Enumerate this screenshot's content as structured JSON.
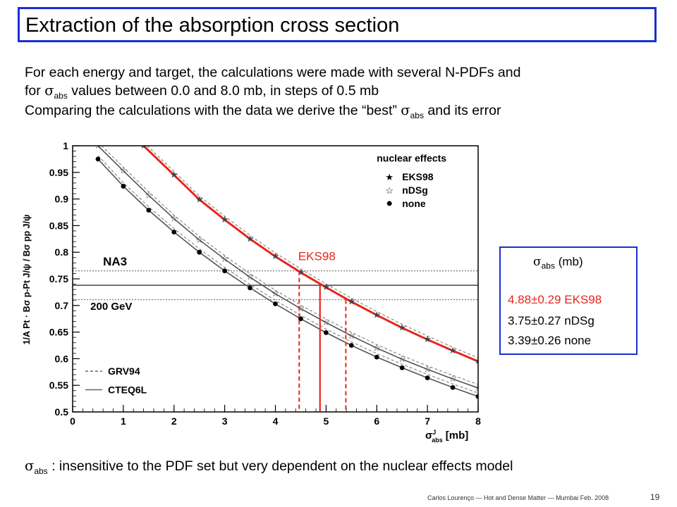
{
  "slide": {
    "title": "Extraction of the absorption cross section",
    "p1_line1": "For each energy and target, the calculations were made with several N-PDFs and",
    "p1_line2_pre": "for",
    "p1_line2_post": "values between 0.0 and 8.0 mb, in steps of 0.5 mb",
    "p2_pre": "Comparing the calculations with the data we derive the “best”",
    "p2_post": "and its error",
    "sigma_symbol": "σ",
    "abs_sub": "abs",
    "bottom_text": ": insensitive to the PDF set but very dependent on the nuclear effects model",
    "footer": "Carlos Lourenço — Hot and Dense Matter — Mumbai Feb. 2008",
    "page_number": "19"
  },
  "results_box": {
    "header_unit": "(mb)",
    "rows": [
      {
        "value": "4.88±0.29",
        "label": "EKS98",
        "color": "#e8251c"
      },
      {
        "value": "3.75±0.27",
        "label": "nDSg",
        "color": "#000000"
      },
      {
        "value": "3.39±0.26",
        "label": "none",
        "color": "#000000"
      }
    ]
  },
  "chart_data": {
    "type": "line",
    "xlabel": "σ abs J [mb]",
    "xlabel_main": "σ",
    "xlabel_sup": "J",
    "xlabel_sub": "abs",
    "xlabel_unit": "[mb]",
    "ylabel": "1/A Pt · Bσ p-Pt J/ψ / Bσ pp J/ψ",
    "xlim": [
      0,
      8
    ],
    "ylim": [
      0.5,
      1.0
    ],
    "x_ticks": [
      "0",
      "1",
      "2",
      "3",
      "4",
      "5",
      "6",
      "7",
      "8"
    ],
    "y_ticks": [
      "0.5",
      "0.55",
      "0.6",
      "0.65",
      "0.7",
      "0.75",
      "0.8",
      "0.85",
      "0.9",
      "0.95",
      "1"
    ],
    "experiment_label": "NA3",
    "energy_label": "200 GeV",
    "curve_label": "EKS98",
    "legend_title": "nuclear effects",
    "legend_items": [
      "EKS98",
      "nDSg",
      "none"
    ],
    "pdf_legend": [
      "GRV94",
      "CTEQ6L"
    ],
    "data_band": {
      "central": 0.738,
      "low": 0.711,
      "high": 0.765
    },
    "sigma_lines": {
      "central": 4.88,
      "low": 4.47,
      "high": 5.39
    },
    "series": [
      {
        "name": "EKS98",
        "color": "#e8251c",
        "x": [
          1.4,
          2.0,
          2.5,
          3.0,
          3.5,
          4.0,
          4.5,
          5.0,
          5.5,
          6.0,
          6.5,
          7.0,
          7.5,
          8.0
        ],
        "y": [
          1.0,
          0.945,
          0.899,
          0.861,
          0.825,
          0.792,
          0.762,
          0.734,
          0.707,
          0.682,
          0.658,
          0.636,
          0.615,
          0.595
        ]
      },
      {
        "name": "nDSg",
        "x": [
          0.5,
          1.0,
          1.5,
          2.0,
          2.5,
          3.0,
          3.5,
          4.0,
          4.5,
          5.0,
          5.5,
          6.0,
          6.5,
          7.0,
          7.5,
          8.0
        ],
        "y": [
          1.0,
          0.953,
          0.907,
          0.863,
          0.823,
          0.787,
          0.753,
          0.722,
          0.694,
          0.668,
          0.643,
          0.62,
          0.599,
          0.58,
          0.562,
          0.545
        ]
      },
      {
        "name": "none",
        "x": [
          0.5,
          1.0,
          1.5,
          2.0,
          2.5,
          3.0,
          3.5,
          4.0,
          4.5,
          5.0,
          5.5,
          6.0,
          6.5,
          7.0,
          7.5,
          8.0
        ],
        "y": [
          0.975,
          0.924,
          0.879,
          0.838,
          0.8,
          0.765,
          0.733,
          0.703,
          0.675,
          0.649,
          0.625,
          0.603,
          0.583,
          0.564,
          0.546,
          0.529
        ]
      }
    ]
  }
}
